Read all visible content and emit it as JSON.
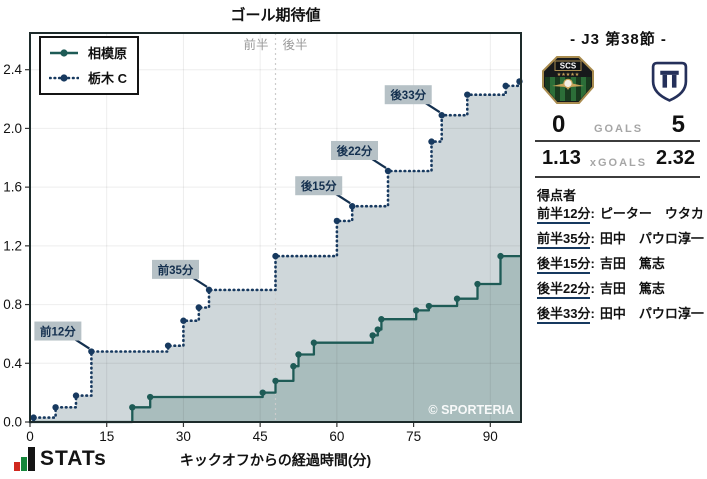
{
  "chart_data": {
    "type": "line",
    "subtype": "step-area-xg",
    "title": "ゴール期待値",
    "xlabel": "キックオフからの経過時間(分)",
    "ylabel": "",
    "xlim": [
      0,
      96
    ],
    "ylim": [
      0,
      2.65
    ],
    "xticks": [
      0,
      15,
      30,
      45,
      60,
      75,
      90
    ],
    "yticks": [
      0.0,
      0.4,
      0.8,
      1.2,
      1.6,
      2.0,
      2.4
    ],
    "grid": true,
    "legend_position": "top-left",
    "halftime_x": 48,
    "half_labels": [
      "前半",
      "後半"
    ],
    "watermark": "© SPORTERIA",
    "series": [
      {
        "name": "相模原",
        "line": "solid",
        "color": "#1e5b56",
        "fill": "#a9bdbd",
        "start": 0,
        "final_xg": 1.13,
        "points": [
          [
            20,
            0.1
          ],
          [
            23.5,
            0.17
          ],
          [
            45.5,
            0.2
          ],
          [
            48,
            0.28
          ],
          [
            51.5,
            0.38
          ],
          [
            52.5,
            0.46
          ],
          [
            55.5,
            0.54
          ],
          [
            67,
            0.59
          ],
          [
            68,
            0.63
          ],
          [
            68.7,
            0.7
          ],
          [
            75.5,
            0.76
          ],
          [
            78,
            0.79
          ],
          [
            83.5,
            0.84
          ],
          [
            87.5,
            0.94
          ],
          [
            92,
            1.13
          ]
        ]
      },
      {
        "name": "栃木 C",
        "line": "dotted",
        "color": "#17395f",
        "fill": "#cfd7da",
        "start": 0,
        "final_xg": 2.32,
        "points": [
          [
            0.7,
            0.03
          ],
          [
            5,
            0.1
          ],
          [
            9,
            0.18
          ],
          [
            12,
            0.48
          ],
          [
            27,
            0.52
          ],
          [
            30,
            0.69
          ],
          [
            33,
            0.78
          ],
          [
            35,
            0.9
          ],
          [
            48,
            1.13
          ],
          [
            60,
            1.37
          ],
          [
            63,
            1.47
          ],
          [
            70,
            1.71
          ],
          [
            78.5,
            1.91
          ],
          [
            80.5,
            2.09
          ],
          [
            85.5,
            2.23
          ],
          [
            93,
            2.29
          ],
          [
            95.7,
            2.32
          ]
        ]
      }
    ],
    "annotations": [
      {
        "label": "前12分",
        "t": 12,
        "v": 0.48
      },
      {
        "label": "前35分",
        "t": 35,
        "v": 0.9
      },
      {
        "label": "後15分",
        "t": 63,
        "v": 1.47
      },
      {
        "label": "後22分",
        "t": 70,
        "v": 1.71
      },
      {
        "label": "後33分",
        "t": 80.5,
        "v": 2.09
      }
    ],
    "colors": {
      "annotation_box": "#b6c1c6",
      "annotation_text": "#14304f",
      "axis_border": "#1d2b2b",
      "half_divider": "#cccccc",
      "half_label_text": "#9a9a9a"
    }
  },
  "panel": {
    "title": "- J3 第38節 -",
    "home_logo_text": "SCS",
    "home_logo_stars": "★★★★★",
    "score": {
      "home": "0",
      "label": "GOALS",
      "away": "5"
    },
    "xgoals": {
      "home": "1.13",
      "label": "xGOALS",
      "away": "2.32"
    },
    "scorers_heading": "得点者",
    "scorer_sep": ":",
    "scorers": [
      {
        "time": "前半12分",
        "name": "ピーター　ウタカ"
      },
      {
        "time": "前半35分",
        "name": "田中　パウロ淳一"
      },
      {
        "time": "後半15分",
        "name": "吉田　篤志"
      },
      {
        "time": "後半22分",
        "name": "吉田　篤志"
      },
      {
        "time": "後半33分",
        "name": "田中　パウロ淳一"
      }
    ]
  },
  "footer": {
    "logo_text": "STATs"
  }
}
